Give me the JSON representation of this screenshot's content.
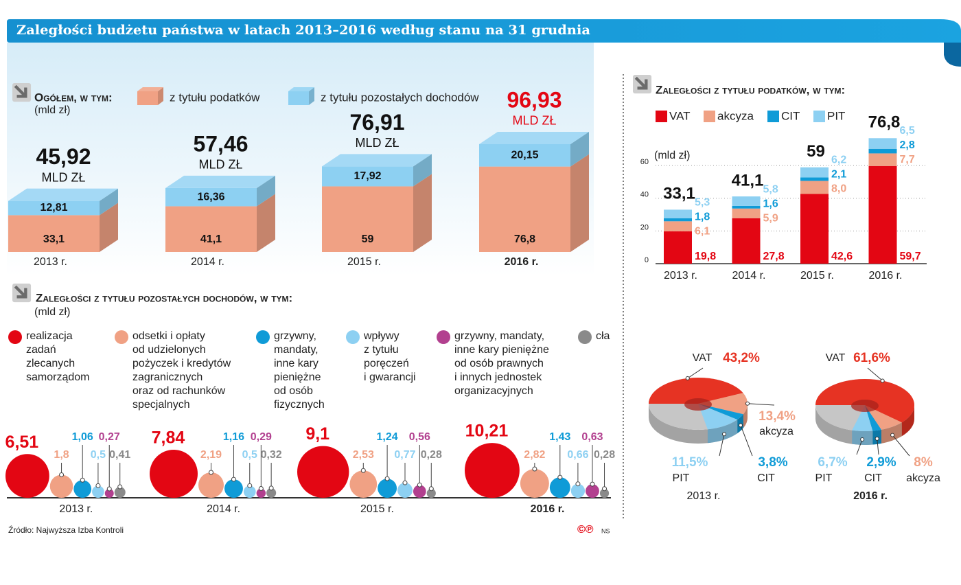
{
  "title": "Zaległości budżetu państwa w latach 2013–2016 według stanu na 31 grudnia",
  "source": "Źródło: Najwyższa Izba Kontroli",
  "logo": "©℗",
  "credit": "NS",
  "chart_data": [
    {
      "type": "bar3d",
      "title": "Ogółem, w tym:",
      "unit": "(mld zł)",
      "categories": [
        "2013 r.",
        "2014 r.",
        "2015 r.",
        "2016 r."
      ],
      "series": [
        {
          "name": "z tytułu podatków",
          "color": "#f0a184",
          "values": [
            33.1,
            41.1,
            59,
            76.8
          ],
          "value_labels": [
            "33,1",
            "41,1",
            "59",
            "76,8"
          ]
        },
        {
          "name": "z tytułu pozostałych dochodów",
          "color": "#8dd0f2",
          "values": [
            12.81,
            16.36,
            17.92,
            20.15
          ],
          "value_labels": [
            "12,81",
            "16,36",
            "17,92",
            "20,15"
          ]
        }
      ],
      "totals": [
        45.92,
        57.46,
        76.91,
        96.93
      ],
      "total_labels": [
        "45,92",
        "57,46",
        "76,91",
        "96,93"
      ],
      "total_unit": "MLD ZŁ",
      "highlight_color": "#e30613"
    },
    {
      "type": "bubble",
      "title": "Zaległości z tytułu pozostałych dochodów, w tym:",
      "unit": "(mld zł)",
      "categories": [
        "2013 r.",
        "2014 r.",
        "2015 r.",
        "2016 r."
      ],
      "series": [
        {
          "name": "realizacja\nzadań\nzlecanych\nsamorządom",
          "color": "#e30613",
          "values": [
            6.51,
            7.84,
            9.1,
            10.21
          ],
          "value_labels": [
            "6,51",
            "7,84",
            "9,1",
            "10,21"
          ]
        },
        {
          "name": "odsetki i opłaty\nod udzielonych\npożyczek i kredytów\nzagranicznych\noraz od rachunków\nspecjalnych",
          "color": "#f0a184",
          "values": [
            1.8,
            2.19,
            2.53,
            2.82
          ],
          "value_labels": [
            "1,8",
            "2,19",
            "2,53",
            "2,82"
          ]
        },
        {
          "name": "grzywny,\nmandaty,\ninne kary\npieniężne\nod osób\nfizycznych",
          "color": "#0f9bd7",
          "values": [
            1.06,
            1.16,
            1.24,
            1.43
          ],
          "value_labels": [
            "1,06",
            "1,16",
            "1,24",
            "1,43"
          ]
        },
        {
          "name": "wpływy\nz tytułu\nporęczeń\ni gwarancji",
          "color": "#8dd0f2",
          "values": [
            0.5,
            0.5,
            0.77,
            0.66
          ],
          "value_labels": [
            "0,5",
            "0,5",
            "0,77",
            "0,66"
          ]
        },
        {
          "name": "grzywny, mandaty,\ninne kary pieniężne\nod osób prawnych\ni innych jednostek\norganizacyjnych",
          "color": "#b2408f",
          "values": [
            0.27,
            0.29,
            0.56,
            0.63
          ],
          "value_labels": [
            "0,27",
            "0,29",
            "0,56",
            "0,63"
          ]
        },
        {
          "name": "cła",
          "color": "#8a8a8a",
          "values": [
            0.41,
            0.32,
            0.28,
            0.28
          ],
          "value_labels": [
            "0,41",
            "0,32",
            "0,28",
            "0,28"
          ]
        }
      ]
    },
    {
      "type": "bar",
      "title": "Zaległości z tytułu podatków, w tym:",
      "unit": "(mld zł)",
      "categories": [
        "2013 r.",
        "2014 r.",
        "2015 r.",
        "2016 r."
      ],
      "series": [
        {
          "name": "VAT",
          "color": "#e30613",
          "values": [
            19.8,
            27.8,
            42.6,
            59.7
          ],
          "value_labels": [
            "19,8",
            "27,8",
            "42,6",
            "59,7"
          ]
        },
        {
          "name": "akcyza",
          "color": "#f0a184",
          "values": [
            6.1,
            5.9,
            8,
            7.7
          ],
          "value_labels": [
            "6,1",
            "5,9",
            "8,0",
            "7,7"
          ]
        },
        {
          "name": "CIT",
          "color": "#0f9bd7",
          "values": [
            1.8,
            1.6,
            2.1,
            2.8
          ],
          "value_labels": [
            "1,8",
            "1,6",
            "2,1",
            "2,8"
          ]
        },
        {
          "name": "PIT",
          "color": "#8dd0f2",
          "values": [
            5.3,
            5.8,
            6.2,
            6.5
          ],
          "value_labels": [
            "5,3",
            "5,8",
            "6,2",
            "6,5"
          ]
        }
      ],
      "totals": [
        33.1,
        41.1,
        59,
        76.8
      ],
      "total_labels": [
        "33,1",
        "41,1",
        "59",
        "76,8"
      ],
      "ylim": [
        0,
        80
      ],
      "yticks": [
        0,
        20,
        40,
        60
      ],
      "grid": true
    },
    {
      "type": "pie",
      "categories": [
        "VAT",
        "akcyza",
        "CIT",
        "PIT"
      ],
      "colors": [
        "#e63323",
        "#f0a184",
        "#0f9bd7",
        "#8dd0f2"
      ],
      "pies": [
        {
          "name": "2013 r.",
          "values": [
            43.2,
            13.4,
            3.8,
            11.5
          ],
          "value_labels": [
            "43,2%",
            "13,4%",
            "3,8%",
            "11,5%"
          ]
        },
        {
          "name": "2016 r.",
          "values": [
            61.6,
            8,
            2.9,
            6.7
          ],
          "value_labels": [
            "61,6%",
            "8%",
            "2,9%",
            "6,7%"
          ]
        }
      ]
    }
  ]
}
